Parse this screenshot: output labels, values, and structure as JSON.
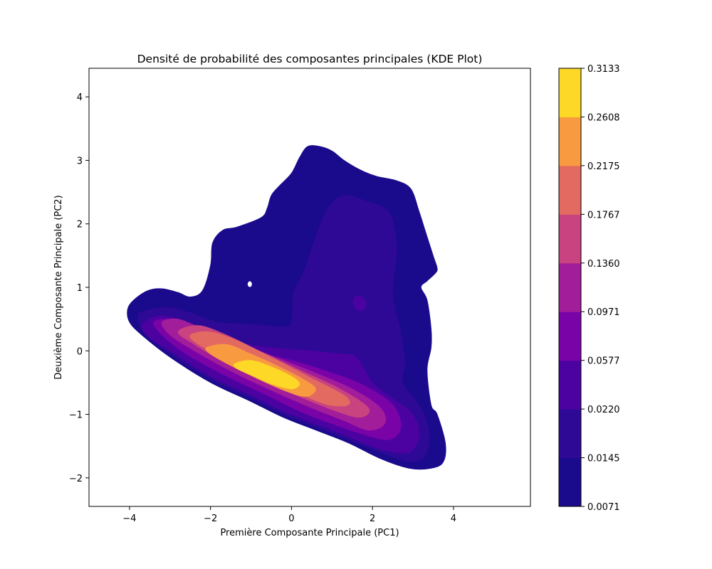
{
  "chart_data": {
    "type": "heatmap",
    "title": "Densité de probabilité des composantes principales (KDE Plot)",
    "xlabel": "Première Composante Principale (PC1)",
    "ylabel": "Deuxième Composante Principale (PC2)",
    "xlim": [
      -5,
      5.9
    ],
    "ylim": [
      -2.45,
      4.45
    ],
    "x_ticks": [
      -4,
      -2,
      0,
      2,
      4
    ],
    "x_tick_labels": [
      "−4",
      "−2",
      "0",
      "2",
      "4"
    ],
    "y_ticks": [
      -2,
      -1,
      0,
      1,
      2,
      3,
      4
    ],
    "y_tick_labels": [
      "−2",
      "−1",
      "0",
      "1",
      "2",
      "3",
      "4"
    ],
    "grid": false,
    "colormap": "plasma",
    "colorbar": {
      "levels": [
        0.0071,
        0.0145,
        0.022,
        0.0577,
        0.0971,
        0.136,
        0.1767,
        0.2175,
        0.2608,
        0.3133
      ],
      "tick_labels": [
        "0.0071",
        "0.0145",
        "0.0220",
        "0.0577",
        "0.0971",
        "0.1360",
        "0.1767",
        "0.2175",
        "0.2608",
        "0.3133"
      ],
      "band_colors": [
        "#1a0a8c",
        "#2d0996",
        "#4c02a1",
        "#7a03a8",
        "#a11d9a",
        "#c8437f",
        "#e36a61",
        "#f89a40",
        "#fdd827"
      ]
    },
    "regions": [
      {
        "level": 0.0071,
        "color": "#1a0a8c",
        "points": [
          [
            -3.9,
            0.8
          ],
          [
            -3.55,
            0.95
          ],
          [
            -3.2,
            0.98
          ],
          [
            -2.8,
            0.92
          ],
          [
            -2.5,
            0.85
          ],
          [
            -2.2,
            0.95
          ],
          [
            -2.0,
            1.35
          ],
          [
            -1.95,
            1.7
          ],
          [
            -1.7,
            1.9
          ],
          [
            -1.35,
            1.95
          ],
          [
            -0.75,
            2.1
          ],
          [
            -0.6,
            2.25
          ],
          [
            -0.5,
            2.45
          ],
          [
            -0.3,
            2.6
          ],
          [
            0.0,
            2.8
          ],
          [
            0.2,
            3.05
          ],
          [
            0.4,
            3.22
          ],
          [
            0.7,
            3.22
          ],
          [
            1.0,
            3.15
          ],
          [
            1.3,
            3.0
          ],
          [
            1.7,
            2.85
          ],
          [
            2.1,
            2.75
          ],
          [
            2.6,
            2.68
          ],
          [
            2.95,
            2.55
          ],
          [
            3.15,
            2.2
          ],
          [
            3.3,
            1.9
          ],
          [
            3.5,
            1.5
          ],
          [
            3.6,
            1.3
          ],
          [
            3.55,
            1.22
          ],
          [
            3.35,
            1.1
          ],
          [
            3.2,
            1.0
          ],
          [
            3.35,
            0.8
          ],
          [
            3.45,
            0.35
          ],
          [
            3.45,
            0.05
          ],
          [
            3.35,
            -0.3
          ],
          [
            3.45,
            -0.85
          ],
          [
            3.6,
            -1.0
          ],
          [
            3.8,
            -1.45
          ],
          [
            3.75,
            -1.75
          ],
          [
            3.45,
            -1.85
          ],
          [
            2.9,
            -1.85
          ],
          [
            2.2,
            -1.7
          ],
          [
            1.4,
            -1.45
          ],
          [
            0.6,
            -1.25
          ],
          [
            -0.2,
            -1.05
          ],
          [
            -1.0,
            -0.8
          ],
          [
            -2.0,
            -0.5
          ],
          [
            -3.0,
            -0.1
          ],
          [
            -3.7,
            0.25
          ],
          [
            -4.0,
            0.45
          ],
          [
            -4.05,
            0.65
          ]
        ]
      },
      {
        "level": 0.0145,
        "color": "#2d0996",
        "points": [
          [
            -3.8,
            0.55
          ],
          [
            -3.5,
            0.65
          ],
          [
            -3.0,
            0.68
          ],
          [
            -2.5,
            0.6
          ],
          [
            -1.8,
            0.45
          ],
          [
            -1.0,
            0.42
          ],
          [
            -0.2,
            0.38
          ],
          [
            0.0,
            0.45
          ],
          [
            0.05,
            0.9
          ],
          [
            0.3,
            1.25
          ],
          [
            0.6,
            1.8
          ],
          [
            0.9,
            2.25
          ],
          [
            1.3,
            2.45
          ],
          [
            1.9,
            2.35
          ],
          [
            2.3,
            2.25
          ],
          [
            2.5,
            2.05
          ],
          [
            2.6,
            1.55
          ],
          [
            2.5,
            0.9
          ],
          [
            2.7,
            0.3
          ],
          [
            2.8,
            -0.2
          ],
          [
            2.75,
            -0.5
          ],
          [
            3.2,
            -0.9
          ],
          [
            3.4,
            -1.3
          ],
          [
            3.3,
            -1.65
          ],
          [
            2.9,
            -1.75
          ],
          [
            2.2,
            -1.6
          ],
          [
            1.4,
            -1.4
          ],
          [
            0.6,
            -1.2
          ],
          [
            -0.2,
            -1.0
          ],
          [
            -1.0,
            -0.75
          ],
          [
            -2.0,
            -0.45
          ],
          [
            -3.0,
            -0.05
          ],
          [
            -3.6,
            0.25
          ]
        ]
      },
      {
        "level": 0.022,
        "color": "#4c02a1",
        "points": [
          [
            -3.7,
            0.4
          ],
          [
            -3.3,
            0.55
          ],
          [
            -2.8,
            0.5
          ],
          [
            -2.2,
            0.35
          ],
          [
            -1.5,
            0.15
          ],
          [
            -0.5,
            0.05
          ],
          [
            0.5,
            0.0
          ],
          [
            1.2,
            -0.05
          ],
          [
            1.6,
            -0.1
          ],
          [
            2.0,
            -0.5
          ],
          [
            2.5,
            -0.75
          ],
          [
            3.0,
            -1.0
          ],
          [
            3.15,
            -1.35
          ],
          [
            2.9,
            -1.6
          ],
          [
            2.2,
            -1.55
          ],
          [
            1.4,
            -1.35
          ],
          [
            0.6,
            -1.15
          ],
          [
            -0.2,
            -0.95
          ],
          [
            -1.0,
            -0.7
          ],
          [
            -2.0,
            -0.4
          ],
          [
            -3.0,
            0.0
          ],
          [
            -3.5,
            0.2
          ]
        ]
      },
      {
        "level": 0.0577,
        "color": "#7a03a8",
        "points": [
          [
            -3.4,
            0.45
          ],
          [
            -3.0,
            0.5
          ],
          [
            -2.5,
            0.4
          ],
          [
            -1.8,
            0.2
          ],
          [
            -1.0,
            0.0
          ],
          [
            0.0,
            -0.15
          ],
          [
            1.0,
            -0.35
          ],
          [
            1.8,
            -0.55
          ],
          [
            2.5,
            -0.85
          ],
          [
            2.7,
            -1.2
          ],
          [
            2.4,
            -1.4
          ],
          [
            1.7,
            -1.3
          ],
          [
            1.0,
            -1.15
          ],
          [
            0.2,
            -0.95
          ],
          [
            -0.6,
            -0.7
          ],
          [
            -1.6,
            -0.4
          ],
          [
            -2.6,
            -0.05
          ],
          [
            -3.2,
            0.25
          ]
        ]
      },
      {
        "level": 0.0971,
        "color": "#a11d9a",
        "points": [
          [
            -3.2,
            0.45
          ],
          [
            -2.8,
            0.5
          ],
          [
            -2.2,
            0.35
          ],
          [
            -1.4,
            0.15
          ],
          [
            -0.4,
            -0.1
          ],
          [
            0.6,
            -0.35
          ],
          [
            1.5,
            -0.6
          ],
          [
            2.2,
            -0.9
          ],
          [
            2.3,
            -1.15
          ],
          [
            1.9,
            -1.25
          ],
          [
            1.3,
            -1.1
          ],
          [
            0.5,
            -0.9
          ],
          [
            -0.4,
            -0.65
          ],
          [
            -1.4,
            -0.35
          ],
          [
            -2.4,
            0.0
          ],
          [
            -3.0,
            0.25
          ]
        ]
      },
      {
        "level": 0.136,
        "color": "#c8437f",
        "points": [
          [
            -2.8,
            0.3
          ],
          [
            -2.3,
            0.4
          ],
          [
            -1.6,
            0.25
          ],
          [
            -0.8,
            0.0
          ],
          [
            0.2,
            -0.3
          ],
          [
            1.2,
            -0.6
          ],
          [
            1.9,
            -0.9
          ],
          [
            1.7,
            -1.05
          ],
          [
            1.1,
            -0.95
          ],
          [
            0.3,
            -0.75
          ],
          [
            -0.6,
            -0.5
          ],
          [
            -1.6,
            -0.2
          ],
          [
            -2.4,
            0.1
          ]
        ]
      },
      {
        "level": 0.1767,
        "color": "#e36a61",
        "points": [
          [
            -2.5,
            0.25
          ],
          [
            -2.0,
            0.3
          ],
          [
            -1.3,
            0.15
          ],
          [
            -0.5,
            -0.1
          ],
          [
            0.4,
            -0.4
          ],
          [
            1.3,
            -0.7
          ],
          [
            1.4,
            -0.85
          ],
          [
            0.9,
            -0.85
          ],
          [
            0.1,
            -0.65
          ],
          [
            -0.8,
            -0.4
          ],
          [
            -1.7,
            -0.1
          ],
          [
            -2.3,
            0.1
          ]
        ]
      },
      {
        "level": 0.2175,
        "color": "#f89a40",
        "points": [
          [
            -2.1,
            0.05
          ],
          [
            -1.6,
            0.1
          ],
          [
            -1.0,
            -0.05
          ],
          [
            -0.3,
            -0.25
          ],
          [
            0.3,
            -0.45
          ],
          [
            0.6,
            -0.6
          ],
          [
            0.35,
            -0.72
          ],
          [
            -0.2,
            -0.62
          ],
          [
            -0.9,
            -0.42
          ],
          [
            -1.6,
            -0.2
          ],
          [
            -2.0,
            -0.05
          ]
        ]
      },
      {
        "level": 0.2608,
        "color": "#fdd827",
        "points": [
          [
            -1.4,
            -0.2
          ],
          [
            -1.0,
            -0.15
          ],
          [
            -0.5,
            -0.25
          ],
          [
            0.0,
            -0.4
          ],
          [
            0.2,
            -0.52
          ],
          [
            0.0,
            -0.6
          ],
          [
            -0.5,
            -0.52
          ],
          [
            -1.0,
            -0.38
          ],
          [
            -1.35,
            -0.28
          ]
        ]
      }
    ]
  }
}
